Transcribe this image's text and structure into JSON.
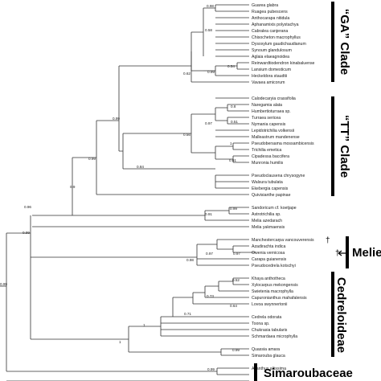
{
  "taxa": [
    "Guarea glabra",
    "Ruagea pubescens",
    "Anthocarapa nitidula",
    "Aphanamixis polystachya",
    "Cabralea canjerana",
    "Chisocheton macrophyllus",
    "Dysoxylum gaudichaudianum",
    "Synoum glandulosum",
    "Aglaia elaeagnoidea",
    "Reinwardtiodendron kinabaluense",
    "Lansium domesticum",
    "Heckeldora staudtii",
    "Vavaea amicorum",
    "Calodecaryia crassifolia",
    "Naregamia alata",
    "Humbertioturraea sp.",
    "Turraea sericea",
    "Nymania capensis",
    "Lepidotrichilia volkensii",
    "Malleastrum mandenense",
    "Pseudobersama mossambicensis",
    "Trichilia emetica",
    "Cipadessa baccifera",
    "Munronia humilis",
    "Pseudoclausena chrysogyne",
    "Walsura tubulata",
    "Ekebergia capensis",
    "Quivisianthe papinae",
    "Sandoricum cf. koetjape",
    "Astrotrichilia sp.",
    "Melia azedarach",
    "Melia yakmaensis",
    "Manchestercarpa vancouverensis",
    "Azadirachta indica",
    "Owenia vernicosa",
    "Carapa guianensis",
    "Pseudocedrela kotschyi",
    "Khaya anthotheca",
    "Xylocarpus mekongensis",
    "Swietenia macrophylla",
    "Capuronianthus mahafalensis",
    "Lovoa swynnertonii",
    "Cedrela odorata",
    "Toona sp.",
    "Chukrasia tabularis",
    "Schmardaea microphylla",
    "Quassia amara",
    "Simarouba glauca",
    "Ailanthus altissima"
  ],
  "supports": [
    "0.98",
    "0.58",
    "0.54",
    "0.99",
    "0.62",
    "0.8",
    "0.51",
    "0.97",
    "1",
    "0.56",
    "0.61",
    "0.84",
    "0.99",
    "0.99",
    "0.9",
    "0.99",
    "0.91",
    "0.96",
    "0.99",
    "0.97",
    "0.97",
    "0.98",
    "0.52",
    "0.73",
    "0.64",
    "0.71",
    "1",
    "0.99",
    "1",
    "0.99",
    "0.99"
  ],
  "clades": {
    "ga": "“GA” Clade",
    "tt": "“TT” Clade",
    "melieae": "Melieae",
    "cedreloideae": "Cedreloideae",
    "simaroubaceae": "Simaroubaceae"
  },
  "dagger": "†"
}
